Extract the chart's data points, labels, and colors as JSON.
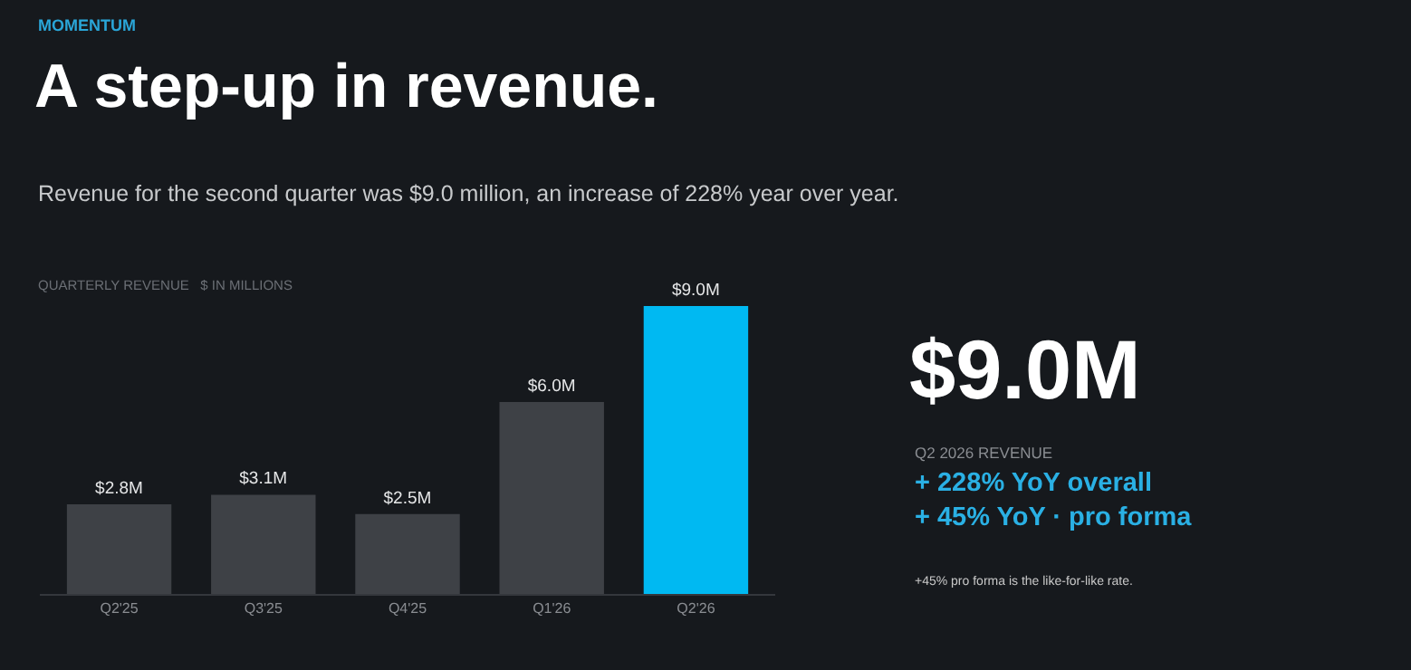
{
  "chart_data": {
    "type": "bar",
    "title": "A step-up in revenue.",
    "subtitle": "Revenue for the second quarter was $9.0 million, an increase of 228% year over year.",
    "ylabel": "QUARTERLY REVENUE   $ IN MILLIONS",
    "categories": [
      "Q2'25",
      "Q3'25",
      "Q4'25",
      "Q1'26",
      "Q2'26"
    ],
    "values": [
      2.8,
      3.1,
      2.5,
      6.0,
      9.0
    ],
    "value_labels": [
      "$2.8M",
      "$3.1M",
      "$2.5M",
      "$6.0M",
      "$9.0M"
    ],
    "colors": [
      "#3e4146",
      "#3e4146",
      "#3e4146",
      "#3e4146",
      "#00b9f2"
    ],
    "annotations": [
      "MOMENTUM",
      "$9.0M",
      "Q2 2026 REVENUE",
      "+ 228% YoY overall",
      "+ 45% YoY · pro forma",
      "+45% pro forma is the like-for-like rate."
    ],
    "grid": false,
    "legend": false
  }
}
